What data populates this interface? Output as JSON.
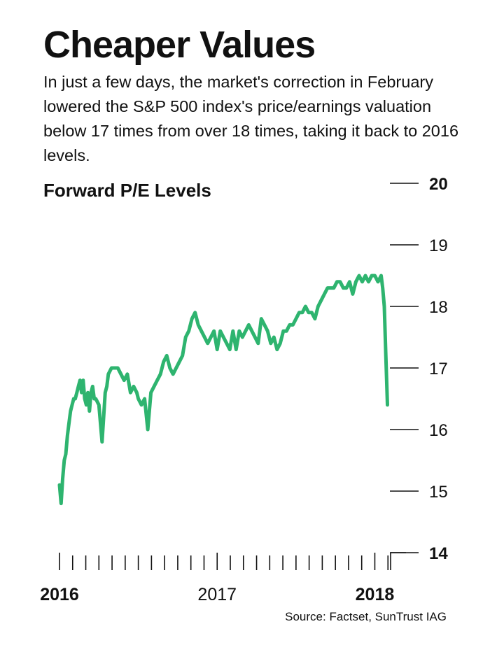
{
  "header": {
    "title": "Cheaper Values",
    "subtitle": "In just a few days, the market's correction in February lowered the S&P 500 index's price/earnings valuation below 17 times from over 18 times, taking it back to 2016 levels."
  },
  "source": "Source: Factset, SunTrust IAG",
  "chart_data": {
    "type": "line",
    "title": "Forward P/E Levels",
    "xlabel": "",
    "ylabel": "",
    "xlim": [
      2016.0,
      2018.1
    ],
    "ylim": [
      14,
      20
    ],
    "y_ticks": [
      "14",
      "15",
      "16",
      "17",
      "18",
      "19",
      "20"
    ],
    "y_tick_values": [
      14,
      15,
      16,
      17,
      18,
      19,
      20
    ],
    "x_tick_labels": [
      "2016",
      "2017",
      "2018"
    ],
    "x_tick_values": [
      2016,
      2017,
      2018
    ],
    "grid": false,
    "line_color": "#2eb46f",
    "series": [
      {
        "name": "",
        "x": [
          2016.0,
          2016.01,
          2016.02,
          2016.03,
          2016.04,
          2016.05,
          2016.06,
          2016.07,
          2016.08,
          2016.09,
          2016.1,
          2016.11,
          2016.12,
          2016.13,
          2016.14,
          2016.15,
          2016.16,
          2016.17,
          2016.18,
          2016.19,
          2016.2,
          2016.21,
          2016.22,
          2016.23,
          2016.25,
          2016.27,
          2016.29,
          2016.3,
          2016.31,
          2016.33,
          2016.35,
          2016.37,
          2016.39,
          2016.41,
          2016.43,
          2016.45,
          2016.47,
          2016.49,
          2016.5,
          2016.52,
          2016.54,
          2016.56,
          2016.58,
          2016.6,
          2016.62,
          2016.64,
          2016.66,
          2016.68,
          2016.7,
          2016.72,
          2016.74,
          2016.76,
          2016.78,
          2016.8,
          2016.82,
          2016.84,
          2016.86,
          2016.88,
          2016.9,
          2016.92,
          2016.94,
          2016.96,
          2016.98,
          2017.0,
          2017.02,
          2017.04,
          2017.06,
          2017.08,
          2017.1,
          2017.12,
          2017.14,
          2017.16,
          2017.18,
          2017.2,
          2017.22,
          2017.24,
          2017.26,
          2017.28,
          2017.3,
          2017.32,
          2017.34,
          2017.36,
          2017.38,
          2017.4,
          2017.42,
          2017.44,
          2017.46,
          2017.48,
          2017.5,
          2017.52,
          2017.54,
          2017.56,
          2017.58,
          2017.6,
          2017.62,
          2017.64,
          2017.66,
          2017.68,
          2017.7,
          2017.72,
          2017.74,
          2017.76,
          2017.78,
          2017.8,
          2017.82,
          2017.84,
          2017.86,
          2017.88,
          2017.9,
          2017.92,
          2017.94,
          2017.96,
          2017.98,
          2018.0,
          2018.02,
          2018.04,
          2018.05,
          2018.06,
          2018.07,
          2018.08
        ],
        "values": [
          15.1,
          14.8,
          15.2,
          15.5,
          15.6,
          15.9,
          16.1,
          16.3,
          16.4,
          16.5,
          16.5,
          16.6,
          16.7,
          16.8,
          16.6,
          16.8,
          16.5,
          16.4,
          16.6,
          16.3,
          16.6,
          16.7,
          16.5,
          16.5,
          16.4,
          15.8,
          16.6,
          16.7,
          16.9,
          17.0,
          17.0,
          17.0,
          16.9,
          16.8,
          16.9,
          16.6,
          16.7,
          16.6,
          16.5,
          16.4,
          16.5,
          16.0,
          16.6,
          16.7,
          16.8,
          16.9,
          17.1,
          17.2,
          17.0,
          16.9,
          17.0,
          17.1,
          17.2,
          17.5,
          17.6,
          17.8,
          17.9,
          17.7,
          17.6,
          17.5,
          17.4,
          17.5,
          17.6,
          17.3,
          17.6,
          17.5,
          17.4,
          17.3,
          17.6,
          17.3,
          17.6,
          17.5,
          17.6,
          17.7,
          17.6,
          17.5,
          17.4,
          17.8,
          17.7,
          17.6,
          17.4,
          17.5,
          17.3,
          17.4,
          17.6,
          17.6,
          17.7,
          17.7,
          17.8,
          17.9,
          17.9,
          18.0,
          17.9,
          17.9,
          17.8,
          18.0,
          18.1,
          18.2,
          18.3,
          18.3,
          18.3,
          18.4,
          18.4,
          18.3,
          18.3,
          18.4,
          18.2,
          18.4,
          18.5,
          18.4,
          18.5,
          18.4,
          18.5,
          18.5,
          18.4,
          18.5,
          18.3,
          18.0,
          17.2,
          16.4
        ]
      }
    ]
  }
}
